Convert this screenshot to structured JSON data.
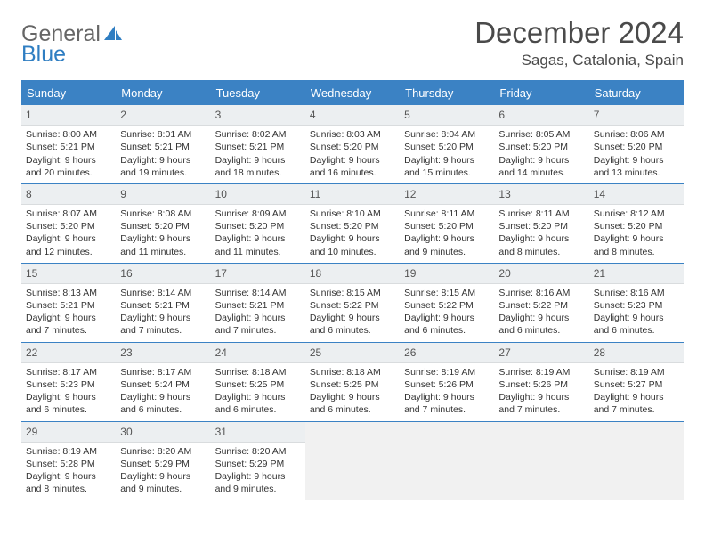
{
  "logo": {
    "line1": "General",
    "line2": "Blue"
  },
  "title": "December 2024",
  "subtitle": "Sagas, Catalonia, Spain",
  "colors": {
    "header_bg": "#3b82c4",
    "header_text": "#ffffff",
    "cell_head_bg": "#eceff1",
    "border": "#3b82c4",
    "empty_bg": "#f1f1f1",
    "text": "#333333",
    "logo_blue": "#2f7ec2"
  },
  "day_names": [
    "Sunday",
    "Monday",
    "Tuesday",
    "Wednesday",
    "Thursday",
    "Friday",
    "Saturday"
  ],
  "weeks": [
    [
      {
        "num": "1",
        "sunrise": "Sunrise: 8:00 AM",
        "sunset": "Sunset: 5:21 PM",
        "day1": "Daylight: 9 hours",
        "day2": "and 20 minutes."
      },
      {
        "num": "2",
        "sunrise": "Sunrise: 8:01 AM",
        "sunset": "Sunset: 5:21 PM",
        "day1": "Daylight: 9 hours",
        "day2": "and 19 minutes."
      },
      {
        "num": "3",
        "sunrise": "Sunrise: 8:02 AM",
        "sunset": "Sunset: 5:21 PM",
        "day1": "Daylight: 9 hours",
        "day2": "and 18 minutes."
      },
      {
        "num": "4",
        "sunrise": "Sunrise: 8:03 AM",
        "sunset": "Sunset: 5:20 PM",
        "day1": "Daylight: 9 hours",
        "day2": "and 16 minutes."
      },
      {
        "num": "5",
        "sunrise": "Sunrise: 8:04 AM",
        "sunset": "Sunset: 5:20 PM",
        "day1": "Daylight: 9 hours",
        "day2": "and 15 minutes."
      },
      {
        "num": "6",
        "sunrise": "Sunrise: 8:05 AM",
        "sunset": "Sunset: 5:20 PM",
        "day1": "Daylight: 9 hours",
        "day2": "and 14 minutes."
      },
      {
        "num": "7",
        "sunrise": "Sunrise: 8:06 AM",
        "sunset": "Sunset: 5:20 PM",
        "day1": "Daylight: 9 hours",
        "day2": "and 13 minutes."
      }
    ],
    [
      {
        "num": "8",
        "sunrise": "Sunrise: 8:07 AM",
        "sunset": "Sunset: 5:20 PM",
        "day1": "Daylight: 9 hours",
        "day2": "and 12 minutes."
      },
      {
        "num": "9",
        "sunrise": "Sunrise: 8:08 AM",
        "sunset": "Sunset: 5:20 PM",
        "day1": "Daylight: 9 hours",
        "day2": "and 11 minutes."
      },
      {
        "num": "10",
        "sunrise": "Sunrise: 8:09 AM",
        "sunset": "Sunset: 5:20 PM",
        "day1": "Daylight: 9 hours",
        "day2": "and 11 minutes."
      },
      {
        "num": "11",
        "sunrise": "Sunrise: 8:10 AM",
        "sunset": "Sunset: 5:20 PM",
        "day1": "Daylight: 9 hours",
        "day2": "and 10 minutes."
      },
      {
        "num": "12",
        "sunrise": "Sunrise: 8:11 AM",
        "sunset": "Sunset: 5:20 PM",
        "day1": "Daylight: 9 hours",
        "day2": "and 9 minutes."
      },
      {
        "num": "13",
        "sunrise": "Sunrise: 8:11 AM",
        "sunset": "Sunset: 5:20 PM",
        "day1": "Daylight: 9 hours",
        "day2": "and 8 minutes."
      },
      {
        "num": "14",
        "sunrise": "Sunrise: 8:12 AM",
        "sunset": "Sunset: 5:20 PM",
        "day1": "Daylight: 9 hours",
        "day2": "and 8 minutes."
      }
    ],
    [
      {
        "num": "15",
        "sunrise": "Sunrise: 8:13 AM",
        "sunset": "Sunset: 5:21 PM",
        "day1": "Daylight: 9 hours",
        "day2": "and 7 minutes."
      },
      {
        "num": "16",
        "sunrise": "Sunrise: 8:14 AM",
        "sunset": "Sunset: 5:21 PM",
        "day1": "Daylight: 9 hours",
        "day2": "and 7 minutes."
      },
      {
        "num": "17",
        "sunrise": "Sunrise: 8:14 AM",
        "sunset": "Sunset: 5:21 PM",
        "day1": "Daylight: 9 hours",
        "day2": "and 7 minutes."
      },
      {
        "num": "18",
        "sunrise": "Sunrise: 8:15 AM",
        "sunset": "Sunset: 5:22 PM",
        "day1": "Daylight: 9 hours",
        "day2": "and 6 minutes."
      },
      {
        "num": "19",
        "sunrise": "Sunrise: 8:15 AM",
        "sunset": "Sunset: 5:22 PM",
        "day1": "Daylight: 9 hours",
        "day2": "and 6 minutes."
      },
      {
        "num": "20",
        "sunrise": "Sunrise: 8:16 AM",
        "sunset": "Sunset: 5:22 PM",
        "day1": "Daylight: 9 hours",
        "day2": "and 6 minutes."
      },
      {
        "num": "21",
        "sunrise": "Sunrise: 8:16 AM",
        "sunset": "Sunset: 5:23 PM",
        "day1": "Daylight: 9 hours",
        "day2": "and 6 minutes."
      }
    ],
    [
      {
        "num": "22",
        "sunrise": "Sunrise: 8:17 AM",
        "sunset": "Sunset: 5:23 PM",
        "day1": "Daylight: 9 hours",
        "day2": "and 6 minutes."
      },
      {
        "num": "23",
        "sunrise": "Sunrise: 8:17 AM",
        "sunset": "Sunset: 5:24 PM",
        "day1": "Daylight: 9 hours",
        "day2": "and 6 minutes."
      },
      {
        "num": "24",
        "sunrise": "Sunrise: 8:18 AM",
        "sunset": "Sunset: 5:25 PM",
        "day1": "Daylight: 9 hours",
        "day2": "and 6 minutes."
      },
      {
        "num": "25",
        "sunrise": "Sunrise: 8:18 AM",
        "sunset": "Sunset: 5:25 PM",
        "day1": "Daylight: 9 hours",
        "day2": "and 6 minutes."
      },
      {
        "num": "26",
        "sunrise": "Sunrise: 8:19 AM",
        "sunset": "Sunset: 5:26 PM",
        "day1": "Daylight: 9 hours",
        "day2": "and 7 minutes."
      },
      {
        "num": "27",
        "sunrise": "Sunrise: 8:19 AM",
        "sunset": "Sunset: 5:26 PM",
        "day1": "Daylight: 9 hours",
        "day2": "and 7 minutes."
      },
      {
        "num": "28",
        "sunrise": "Sunrise: 8:19 AM",
        "sunset": "Sunset: 5:27 PM",
        "day1": "Daylight: 9 hours",
        "day2": "and 7 minutes."
      }
    ],
    [
      {
        "num": "29",
        "sunrise": "Sunrise: 8:19 AM",
        "sunset": "Sunset: 5:28 PM",
        "day1": "Daylight: 9 hours",
        "day2": "and 8 minutes."
      },
      {
        "num": "30",
        "sunrise": "Sunrise: 8:20 AM",
        "sunset": "Sunset: 5:29 PM",
        "day1": "Daylight: 9 hours",
        "day2": "and 9 minutes."
      },
      {
        "num": "31",
        "sunrise": "Sunrise: 8:20 AM",
        "sunset": "Sunset: 5:29 PM",
        "day1": "Daylight: 9 hours",
        "day2": "and 9 minutes."
      },
      null,
      null,
      null,
      null
    ]
  ]
}
